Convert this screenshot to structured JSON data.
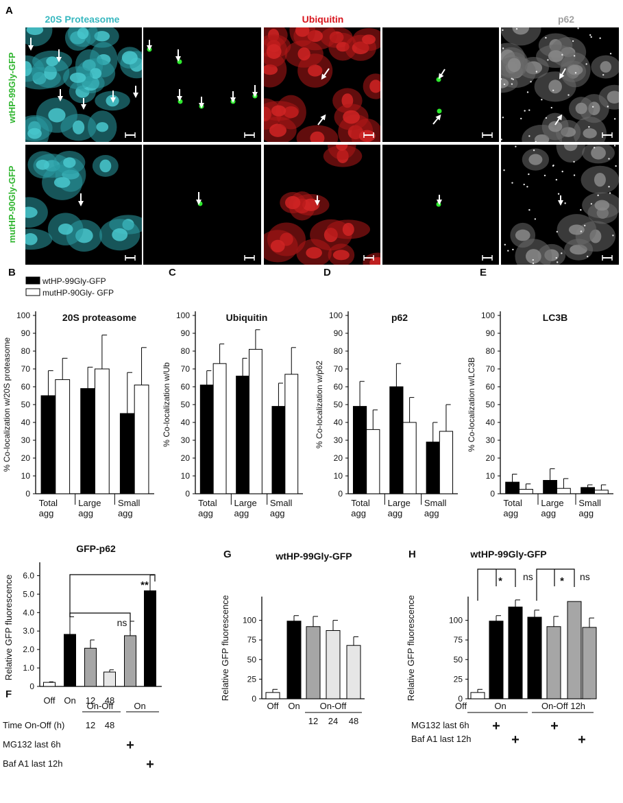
{
  "figure": {
    "panel_letters": [
      "A",
      "B",
      "C",
      "D",
      "E",
      "F",
      "G",
      "H"
    ],
    "micro": {
      "column_titles": [
        {
          "text": "20S Proteasome",
          "color": "#38b8c0"
        },
        {
          "text": "Ubiquitin",
          "color": "#d8141c"
        },
        {
          "text": "p62",
          "color": "#a0a0a0"
        }
      ],
      "row_labels": [
        "wtHP-99Gly-GFP",
        "mutHP-90Gly-GFP"
      ],
      "row_label_color": "#2fb52f"
    },
    "legend": [
      "wtHP-99Gly-GFP",
      "mutHP-90Gly- GFP"
    ]
  },
  "colors": {
    "black": "#000000",
    "white": "#ffffff",
    "gray": "#a6a6a6",
    "light": "#e6e6e6"
  },
  "chart_data": [
    {
      "panel": "B",
      "type": "bar",
      "title": "20S proteasome",
      "ylabel": "% Co-localization w/20S proteasome",
      "ylim": [
        0,
        100
      ],
      "yticks": [
        "0",
        "10",
        "20",
        "30",
        "40",
        "50",
        "60",
        "70",
        "80",
        "90",
        "100"
      ],
      "categories": [
        "Total agg",
        "Large agg",
        "Small agg"
      ],
      "series": [
        {
          "name": "wtHP-99Gly-GFP",
          "values": [
            55,
            59,
            45
          ],
          "err": [
            14,
            12,
            23
          ]
        },
        {
          "name": "mutHP-90Gly- GFP",
          "values": [
            64,
            70,
            61
          ],
          "err": [
            12,
            19,
            21
          ]
        }
      ]
    },
    {
      "panel": "C",
      "type": "bar",
      "title": "Ubiquitin",
      "ylabel": "% Co-localization w/Ub",
      "ylim": [
        0,
        100
      ],
      "yticks": [
        "0",
        "10",
        "20",
        "30",
        "40",
        "50",
        "60",
        "70",
        "80",
        "90",
        "100"
      ],
      "categories": [
        "Total agg",
        "Large agg",
        "Small agg"
      ],
      "series": [
        {
          "name": "wtHP-99Gly-GFP",
          "values": [
            61,
            66,
            49
          ],
          "err": [
            8,
            10,
            13
          ]
        },
        {
          "name": "mutHP-90Gly- GFP",
          "values": [
            73,
            81,
            67
          ],
          "err": [
            11,
            11,
            15
          ]
        }
      ]
    },
    {
      "panel": "D",
      "type": "bar",
      "title": "p62",
      "ylabel": "% Co-localization w/p62",
      "ylim": [
        0,
        100
      ],
      "yticks": [
        "0",
        "10",
        "20",
        "30",
        "40",
        "50",
        "60",
        "70",
        "80",
        "90",
        "100"
      ],
      "categories": [
        "Total agg",
        "Large agg",
        "Small agg"
      ],
      "series": [
        {
          "name": "wtHP-99Gly-GFP",
          "values": [
            49,
            60,
            29
          ],
          "err": [
            14,
            13,
            11
          ]
        },
        {
          "name": "mutHP-90Gly- GFP",
          "values": [
            36,
            40,
            35
          ],
          "err": [
            11,
            14,
            15
          ]
        }
      ]
    },
    {
      "panel": "E",
      "type": "bar",
      "title": "LC3B",
      "ylabel": "% Co-localization w/LC3B",
      "ylim": [
        0,
        100
      ],
      "yticks": [
        "0",
        "10",
        "20",
        "30",
        "40",
        "50",
        "60",
        "70",
        "80",
        "90",
        "100"
      ],
      "categories": [
        "Total agg",
        "Large agg",
        "Small agg"
      ],
      "series": [
        {
          "name": "wtHP-99Gly-GFP",
          "values": [
            6.5,
            7.5,
            3.5
          ],
          "err": [
            4.5,
            6.5,
            1.5
          ]
        },
        {
          "name": "mutHP-90Gly- GFP",
          "values": [
            2.5,
            3,
            2
          ],
          "err": [
            3,
            5.5,
            3
          ]
        }
      ]
    },
    {
      "panel": "F",
      "type": "bar",
      "title": "GFP-p62",
      "ylabel": "Relative GFP fluorescence",
      "ylim": [
        0,
        6.5
      ],
      "yticks": [
        "0",
        "1.0",
        "2.0",
        "3.0",
        "4.0",
        "5.0",
        "6.0"
      ],
      "bars": [
        {
          "label": "Off",
          "value": 0.22,
          "err": 0.03,
          "fill": "white"
        },
        {
          "label": "On",
          "value": 2.82,
          "err": 0.95,
          "fill": "black"
        },
        {
          "label": "12",
          "value": 2.07,
          "err": 0.45,
          "fill": "gray"
        },
        {
          "label": "48",
          "value": 0.78,
          "err": 0.12,
          "fill": "light"
        },
        {
          "label": "",
          "value": 2.75,
          "err": 0.78,
          "fill": "gray"
        },
        {
          "label": "",
          "value": 5.18,
          "err": 0.85,
          "fill": "black"
        }
      ],
      "brackets": [
        {
          "text": "**"
        },
        {
          "text": "ns"
        }
      ],
      "rows": [
        {
          "label": "Time On-Off (h)",
          "groups": [
            "On-Off",
            "On"
          ]
        },
        {
          "label": "MG132 last 6h"
        },
        {
          "label": "Baf A1 last 12h"
        }
      ],
      "plus": "+"
    },
    {
      "panel": "G",
      "type": "bar",
      "title": "wtHP-99Gly-GFP",
      "ylabel": "Relative GFP fluorescence",
      "ylim": [
        0,
        125
      ],
      "yticks": [
        "0",
        "25",
        "50",
        "75",
        "100"
      ],
      "bars": [
        {
          "label": "Off",
          "value": 8,
          "err": 4,
          "fill": "white"
        },
        {
          "label": "On",
          "value": 99,
          "err": 7,
          "fill": "black"
        },
        {
          "label": "12",
          "value": 92,
          "err": 13,
          "fill": "gray"
        },
        {
          "label": "24",
          "value": 87,
          "err": 13,
          "fill": "light"
        },
        {
          "label": "48",
          "value": 68,
          "err": 11,
          "fill": "light"
        }
      ],
      "group": "On-Off"
    },
    {
      "panel": "H",
      "type": "bar",
      "title": "wtHP-99Gly-GFP",
      "ylabel": "Relative GFP fluorescence",
      "ylim": [
        0,
        125
      ],
      "yticks": [
        "0",
        "25",
        "50",
        "75",
        "100"
      ],
      "bars": [
        {
          "label": "Off",
          "value": 8,
          "err": 4,
          "fill": "white"
        },
        {
          "label": "",
          "value": 99,
          "err": 7,
          "fill": "black"
        },
        {
          "label": "",
          "value": 117,
          "err": 9,
          "fill": "black"
        },
        {
          "label": "",
          "value": 104,
          "err": 9,
          "fill": "black"
        },
        {
          "label": "",
          "value": 92,
          "err": 13,
          "fill": "gray"
        },
        {
          "label": "",
          "value": 124,
          "err": 0,
          "fill": "gray"
        },
        {
          "label": "",
          "value": 91,
          "err": 12,
          "fill": "gray"
        }
      ],
      "brackets": [
        {
          "text": "*"
        },
        {
          "text": "ns"
        },
        {
          "text": "*"
        },
        {
          "text": "ns"
        }
      ],
      "groups": [
        "On",
        "On-Off 12h"
      ],
      "rows": [
        {
          "label": "MG132 last 6h"
        },
        {
          "label": "Baf A1 last 12h"
        }
      ],
      "plus": "+"
    }
  ]
}
